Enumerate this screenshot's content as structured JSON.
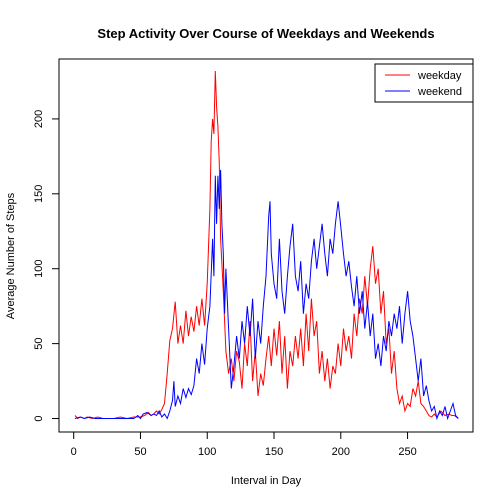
{
  "chart_data": {
    "type": "line",
    "title": "Step Activity Over Course of Weekdays and Weekends",
    "xlabel": "Interval in Day",
    "ylabel": "Average Number of Steps",
    "xlim": [
      -11,
      299
    ],
    "ylim": [
      -9,
      240
    ],
    "xticks": [
      0,
      50,
      100,
      150,
      200,
      250
    ],
    "yticks": [
      0,
      50,
      100,
      150,
      200
    ],
    "xtick_labels": [
      "0",
      "50",
      "100",
      "150",
      "200",
      "250"
    ],
    "ytick_labels": [
      "0",
      "50",
      "100",
      "150",
      "200"
    ],
    "grid": false,
    "legend_position": "top-right",
    "series": [
      {
        "name": "weekday",
        "color": "#ff0000",
        "points": [
          [
            1,
            2
          ],
          [
            3,
            0
          ],
          [
            5,
            1
          ],
          [
            8,
            0
          ],
          [
            10,
            1
          ],
          [
            14,
            0
          ],
          [
            18,
            1
          ],
          [
            22,
            0
          ],
          [
            30,
            0
          ],
          [
            35,
            1
          ],
          [
            40,
            0
          ],
          [
            45,
            1
          ],
          [
            50,
            1
          ],
          [
            53,
            2
          ],
          [
            56,
            4
          ],
          [
            58,
            2
          ],
          [
            60,
            3
          ],
          [
            62,
            5
          ],
          [
            64,
            3
          ],
          [
            66,
            6
          ],
          [
            68,
            10
          ],
          [
            70,
            30
          ],
          [
            72,
            52
          ],
          [
            74,
            60
          ],
          [
            76,
            78
          ],
          [
            78,
            50
          ],
          [
            80,
            62
          ],
          [
            82,
            50
          ],
          [
            84,
            72
          ],
          [
            86,
            55
          ],
          [
            88,
            68
          ],
          [
            90,
            58
          ],
          [
            92,
            75
          ],
          [
            94,
            62
          ],
          [
            96,
            80
          ],
          [
            98,
            62
          ],
          [
            100,
            90
          ],
          [
            102,
            140
          ],
          [
            103,
            185
          ],
          [
            104,
            200
          ],
          [
            105,
            190
          ],
          [
            106,
            232
          ],
          [
            107,
            208
          ],
          [
            108,
            195
          ],
          [
            109,
            170
          ],
          [
            110,
            120
          ],
          [
            112,
            85
          ],
          [
            114,
            45
          ],
          [
            116,
            30
          ],
          [
            118,
            40
          ],
          [
            120,
            25
          ],
          [
            122,
            45
          ],
          [
            124,
            38
          ],
          [
            126,
            20
          ],
          [
            128,
            50
          ],
          [
            130,
            35
          ],
          [
            132,
            65
          ],
          [
            134,
            25
          ],
          [
            136,
            45
          ],
          [
            138,
            15
          ],
          [
            140,
            30
          ],
          [
            142,
            22
          ],
          [
            144,
            40
          ],
          [
            146,
            55
          ],
          [
            148,
            35
          ],
          [
            150,
            60
          ],
          [
            152,
            42
          ],
          [
            154,
            65
          ],
          [
            156,
            30
          ],
          [
            158,
            55
          ],
          [
            160,
            20
          ],
          [
            162,
            45
          ],
          [
            164,
            35
          ],
          [
            166,
            55
          ],
          [
            168,
            40
          ],
          [
            170,
            60
          ],
          [
            172,
            35
          ],
          [
            174,
            70
          ],
          [
            176,
            45
          ],
          [
            178,
            80
          ],
          [
            180,
            55
          ],
          [
            182,
            65
          ],
          [
            184,
            30
          ],
          [
            186,
            45
          ],
          [
            188,
            25
          ],
          [
            190,
            40
          ],
          [
            192,
            20
          ],
          [
            194,
            35
          ],
          [
            196,
            30
          ],
          [
            198,
            50
          ],
          [
            200,
            35
          ],
          [
            202,
            60
          ],
          [
            204,
            45
          ],
          [
            206,
            55
          ],
          [
            208,
            40
          ],
          [
            210,
            70
          ],
          [
            212,
            55
          ],
          [
            214,
            80
          ],
          [
            216,
            70
          ],
          [
            218,
            95
          ],
          [
            220,
            75
          ],
          [
            222,
            100
          ],
          [
            224,
            115
          ],
          [
            226,
            90
          ],
          [
            228,
            100
          ],
          [
            230,
            70
          ],
          [
            232,
            85
          ],
          [
            234,
            50
          ],
          [
            236,
            60
          ],
          [
            238,
            30
          ],
          [
            240,
            45
          ],
          [
            242,
            20
          ],
          [
            244,
            10
          ],
          [
            246,
            15
          ],
          [
            248,
            5
          ],
          [
            250,
            10
          ],
          [
            252,
            8
          ],
          [
            254,
            20
          ],
          [
            256,
            15
          ],
          [
            258,
            25
          ],
          [
            260,
            10
          ],
          [
            262,
            8
          ],
          [
            264,
            5
          ],
          [
            266,
            2
          ],
          [
            268,
            1
          ],
          [
            270,
            3
          ],
          [
            272,
            1
          ],
          [
            275,
            5
          ],
          [
            278,
            2
          ],
          [
            281,
            3
          ],
          [
            283,
            2
          ],
          [
            285,
            2
          ],
          [
            288,
            0
          ]
        ]
      },
      {
        "name": "weekend",
        "color": "#0000ff",
        "points": [
          [
            1,
            0
          ],
          [
            5,
            1
          ],
          [
            8,
            0
          ],
          [
            12,
            1
          ],
          [
            16,
            0
          ],
          [
            20,
            0
          ],
          [
            30,
            0
          ],
          [
            40,
            0
          ],
          [
            45,
            0
          ],
          [
            48,
            2
          ],
          [
            50,
            0
          ],
          [
            52,
            3
          ],
          [
            55,
            4
          ],
          [
            58,
            2
          ],
          [
            60,
            3
          ],
          [
            62,
            2
          ],
          [
            64,
            5
          ],
          [
            66,
            1
          ],
          [
            68,
            3
          ],
          [
            70,
            0
          ],
          [
            72,
            5
          ],
          [
            74,
            12
          ],
          [
            75,
            25
          ],
          [
            76,
            8
          ],
          [
            78,
            15
          ],
          [
            80,
            10
          ],
          [
            82,
            20
          ],
          [
            84,
            14
          ],
          [
            86,
            20
          ],
          [
            88,
            16
          ],
          [
            90,
            22
          ],
          [
            92,
            40
          ],
          [
            94,
            30
          ],
          [
            96,
            50
          ],
          [
            98,
            36
          ],
          [
            100,
            60
          ],
          [
            102,
            75
          ],
          [
            104,
            120
          ],
          [
            105,
            95
          ],
          [
            106,
            162
          ],
          [
            107,
            130
          ],
          [
            108,
            162
          ],
          [
            109,
            140
          ],
          [
            110,
            166
          ],
          [
            111,
            130
          ],
          [
            112,
            110
          ],
          [
            113,
            70
          ],
          [
            114,
            100
          ],
          [
            116,
            60
          ],
          [
            118,
            20
          ],
          [
            120,
            35
          ],
          [
            122,
            55
          ],
          [
            124,
            40
          ],
          [
            126,
            65
          ],
          [
            128,
            50
          ],
          [
            130,
            75
          ],
          [
            132,
            55
          ],
          [
            134,
            80
          ],
          [
            136,
            40
          ],
          [
            138,
            65
          ],
          [
            140,
            50
          ],
          [
            142,
            75
          ],
          [
            144,
            95
          ],
          [
            146,
            135
          ],
          [
            147,
            145
          ],
          [
            148,
            110
          ],
          [
            150,
            90
          ],
          [
            152,
            80
          ],
          [
            154,
            120
          ],
          [
            156,
            85
          ],
          [
            158,
            70
          ],
          [
            160,
            95
          ],
          [
            162,
            115
          ],
          [
            164,
            130
          ],
          [
            166,
            95
          ],
          [
            168,
            85
          ],
          [
            170,
            105
          ],
          [
            172,
            70
          ],
          [
            174,
            90
          ],
          [
            176,
            80
          ],
          [
            178,
            105
          ],
          [
            180,
            120
          ],
          [
            182,
            100
          ],
          [
            184,
            115
          ],
          [
            186,
            130
          ],
          [
            188,
            110
          ],
          [
            190,
            95
          ],
          [
            192,
            120
          ],
          [
            194,
            110
          ],
          [
            196,
            130
          ],
          [
            198,
            145
          ],
          [
            200,
            128
          ],
          [
            202,
            110
          ],
          [
            204,
            95
          ],
          [
            206,
            105
          ],
          [
            208,
            88
          ],
          [
            210,
            75
          ],
          [
            212,
            95
          ],
          [
            214,
            70
          ],
          [
            216,
            85
          ],
          [
            218,
            60
          ],
          [
            220,
            78
          ],
          [
            222,
            55
          ],
          [
            224,
            70
          ],
          [
            226,
            40
          ],
          [
            228,
            50
          ],
          [
            230,
            35
          ],
          [
            232,
            55
          ],
          [
            234,
            45
          ],
          [
            236,
            65
          ],
          [
            238,
            55
          ],
          [
            240,
            70
          ],
          [
            242,
            60
          ],
          [
            244,
            75
          ],
          [
            246,
            50
          ],
          [
            248,
            70
          ],
          [
            250,
            85
          ],
          [
            252,
            65
          ],
          [
            254,
            55
          ],
          [
            256,
            40
          ],
          [
            258,
            25
          ],
          [
            260,
            40
          ],
          [
            262,
            15
          ],
          [
            264,
            22
          ],
          [
            266,
            12
          ],
          [
            268,
            5
          ],
          [
            270,
            8
          ],
          [
            272,
            0
          ],
          [
            274,
            5
          ],
          [
            276,
            2
          ],
          [
            278,
            8
          ],
          [
            280,
            0
          ],
          [
            282,
            5
          ],
          [
            284,
            10
          ],
          [
            286,
            2
          ],
          [
            288,
            0
          ]
        ]
      }
    ]
  }
}
